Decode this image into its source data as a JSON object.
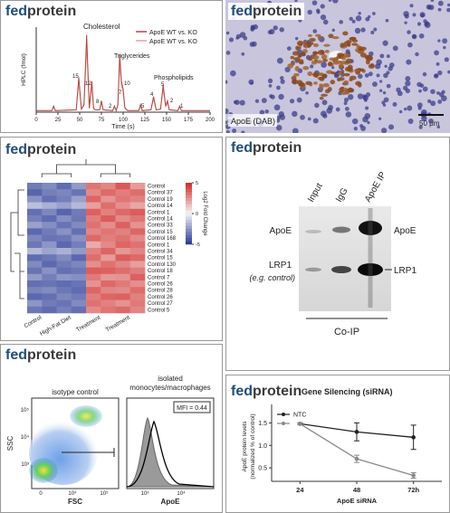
{
  "brand": {
    "prefix": "fed",
    "suffix": "protein"
  },
  "hplc": {
    "type": "line",
    "x_label": "Time (s)",
    "y_label": "HPLC (fmol)",
    "xlim": [
      0,
      200
    ],
    "xticks": [
      0,
      25,
      50,
      75,
      100,
      125,
      150,
      175,
      200
    ],
    "ylim": [
      0,
      110
    ],
    "x": [
      0,
      18,
      20,
      22,
      46,
      49,
      52,
      55,
      58,
      61,
      64,
      66,
      68,
      73,
      75,
      77,
      88,
      90,
      92,
      94,
      96,
      98,
      100,
      102,
      105,
      118,
      120,
      122,
      132,
      135,
      138,
      143,
      146,
      149,
      151,
      153,
      163,
      165,
      167,
      200
    ],
    "series": [
      {
        "name": "ApoE WT vs. KO",
        "color": "#b5443f",
        "values": [
          2,
          2,
          8,
          2,
          3,
          45,
          4,
          10,
          100,
          5,
          40,
          5,
          3,
          3,
          15,
          3,
          2,
          8,
          2,
          10,
          75,
          40,
          30,
          6,
          2,
          2,
          10,
          2,
          3,
          20,
          3,
          4,
          35,
          8,
          15,
          3,
          2,
          8,
          2,
          2
        ]
      },
      {
        "name": "ApoE WT vs. KO",
        "color": "#e8a09a",
        "values": [
          2,
          2,
          6,
          2,
          3,
          38,
          4,
          9,
          86,
          5,
          34,
          5,
          3,
          3,
          12,
          3,
          2,
          7,
          2,
          9,
          64,
          34,
          26,
          5,
          2,
          2,
          8,
          2,
          3,
          17,
          3,
          4,
          30,
          7,
          12,
          3,
          2,
          7,
          2,
          2
        ]
      }
    ],
    "annotations": [
      "Cholesterol",
      "Triglycerides",
      "Phospholipids",
      "15",
      "12",
      "8",
      "2",
      "10",
      "7",
      "5",
      "4",
      "5",
      "2",
      "1"
    ]
  },
  "histology": {
    "stain_label": "ApoE (DAB)",
    "scale_label": "50 μm"
  },
  "heatmap": {
    "type": "heatmap",
    "rows": [
      "Control",
      "Control 37",
      "Control 19",
      "Control 14",
      "Control 1",
      "Control 14",
      "Control 33",
      "Control 15",
      "Control 168",
      "Control 1",
      "Control 34",
      "Control 15",
      "Control 130",
      "Control 18",
      "Control 7",
      "Control 26",
      "Control 28",
      "Control 26",
      "Control 27",
      "Control 5"
    ],
    "columns": [
      "Control",
      null,
      "High-Fat Diet",
      null,
      "Treatment",
      null,
      "Treatment",
      null
    ],
    "values": [
      [
        -3.2,
        -2.8,
        -3.6,
        -2.4,
        3.1,
        2.7,
        3.8,
        2.2
      ],
      [
        -3.8,
        -3.1,
        -2.9,
        -3.4,
        2.6,
        3.4,
        2.9,
        3.3
      ],
      [
        -2.6,
        -3.5,
        -3.1,
        -2.2,
        3.5,
        2.4,
        3.1,
        2.8
      ],
      [
        -1.4,
        -1.8,
        -2.2,
        -1.6,
        2.1,
        3.3,
        2.5,
        1.9
      ],
      [
        -3.5,
        -2.9,
        -3.8,
        -3.2,
        3.6,
        2.8,
        3.4,
        3.7
      ],
      [
        -3.1,
        -3.6,
        -2.7,
        -3.3,
        2.9,
        3.7,
        2.6,
        3.1
      ],
      [
        -2.2,
        -2.7,
        -3.4,
        -2.8,
        3.2,
        2.5,
        3.6,
        2.4
      ],
      [
        -3.7,
        -3.2,
        -2.6,
        -3.5,
        2.7,
        3.1,
        2.8,
        3.5
      ],
      [
        -2.9,
        -3.4,
        -3.3,
        -2.6,
        3.4,
        2.9,
        3.2,
        2.6
      ],
      [
        -3.3,
        -2.5,
        -3.7,
        -3.1,
        1.8,
        2.6,
        3.5,
        3.2
      ],
      [
        -1.6,
        -2.1,
        -1.8,
        -2.4,
        2.8,
        3.5,
        2.3,
        2.7
      ],
      [
        -3.6,
        -3.3,
        -2.8,
        -3.7,
        3.3,
        2.2,
        3.7,
        3.4
      ],
      [
        -2.8,
        -3.7,
        -3.2,
        -2.9,
        2.5,
        3.2,
        2.7,
        2.1
      ],
      [
        -3.4,
        -2.6,
        -3.5,
        -3.3,
        3.7,
        3.6,
        3.3,
        2.9
      ],
      [
        -2.4,
        -3.1,
        -2.5,
        -2.7,
        3.0,
        2.3,
        2.4,
        3.6
      ],
      [
        -3.5,
        -3.4,
        -3.6,
        -3.4,
        2.4,
        3.4,
        3.0,
        2.5
      ],
      [
        -3.0,
        -2.8,
        -3.3,
        -3.6,
        3.5,
        2.7,
        2.6,
        3.3
      ],
      [
        -3.7,
        -3.5,
        -2.9,
        -3.2,
        2.9,
        3.5,
        3.6,
        2.8
      ],
      [
        -2.5,
        -3.2,
        -3.4,
        -2.8,
        3.2,
        2.8,
        2.4,
        3.0
      ],
      [
        -3.3,
        -3.6,
        -3.1,
        -3.5,
        2.6,
        3.1,
        3.4,
        2.7
      ]
    ],
    "colorbar": {
      "label": "Log2 Fold Change",
      "lim": [
        -5,
        5
      ],
      "ticks": [
        5,
        0,
        -5
      ]
    }
  },
  "blot": {
    "lanes": [
      "Input",
      "IgG",
      "ApoE IP"
    ],
    "left_labels": [
      "ApoE",
      "LRP1",
      "(e.g. control)"
    ],
    "right_labels": [
      "ApoE",
      "LRP1"
    ],
    "bracket": "Co-IP"
  },
  "flow": {
    "left_title": "isotype control",
    "right_title": [
      "isolated",
      "monocytes/macrophages"
    ],
    "mfi": "MFI = 0.44",
    "y_label": "SSC",
    "x_label_left": "FSC",
    "x_label_right": "ApoE",
    "y_ticks": [
      "10⁵",
      "10⁴",
      "10³"
    ],
    "x_ticks_left": [
      "0",
      "10⁴",
      "10⁵"
    ],
    "x_ticks_right": [
      "10³",
      "10⁴"
    ]
  },
  "silencing": {
    "type": "line",
    "title": "Gene Silencing (siRNA)",
    "y_label": [
      "ApoE protein levels",
      "(normalized % of control)"
    ],
    "x_label": "ApoE siRNA",
    "categories": [
      "24",
      "48",
      "72h"
    ],
    "ylim": [
      0.2,
      1.75
    ],
    "yticks": [
      0.5,
      {
        "value": 1,
        "label": "1.0"
      },
      1.5
    ],
    "series": [
      {
        "name": "NTC",
        "color": "#222222",
        "values": [
          1.48,
          1.3,
          1.18
        ],
        "errors": [
          0.02,
          0.2,
          0.27
        ]
      },
      {
        "color": "#888888",
        "values": [
          1.48,
          0.7,
          0.33
        ],
        "errors": [
          0.02,
          0.08,
          0.06
        ]
      }
    ]
  }
}
